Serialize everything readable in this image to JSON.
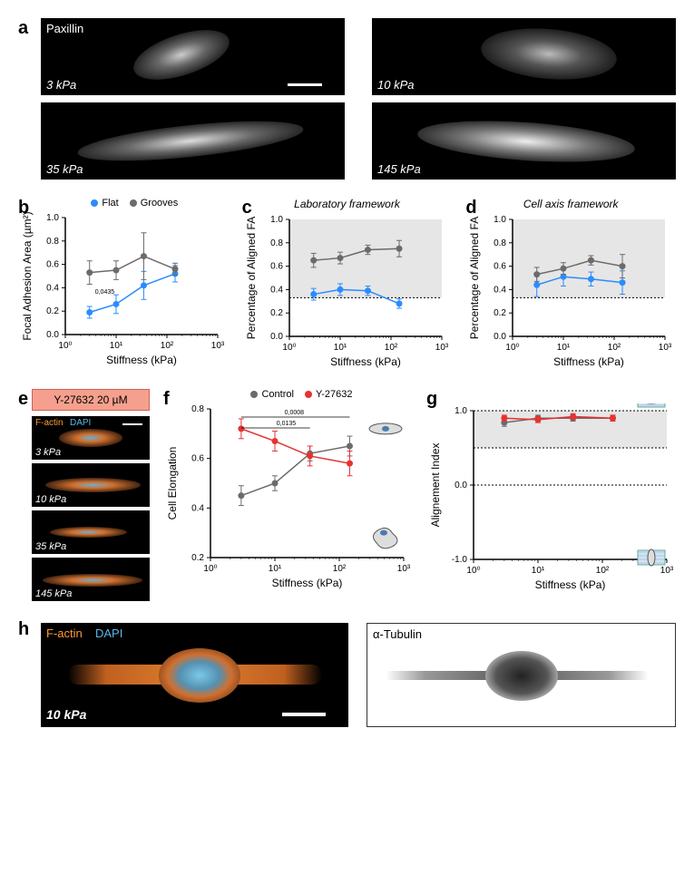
{
  "panel_a": {
    "label": "a",
    "paxillin_text": "Paxillin",
    "stiffnesses": [
      "3 kPa",
      "10 kPa",
      "35 kPa",
      "145 kPa"
    ]
  },
  "panel_b": {
    "label": "b",
    "legend": [
      {
        "name": "Flat",
        "color": "#2b8cff"
      },
      {
        "name": "Grooves",
        "color": "#6b6b6b"
      }
    ],
    "ylabel": "Focal Adhesion Area (µm²)",
    "xlabel": "Stiffness (kPa)",
    "ylim": [
      0.0,
      1.0
    ],
    "ytick_step": 0.2,
    "xticks": [
      1,
      10,
      100,
      1000
    ],
    "xtick_labels": [
      "10⁰",
      "10¹",
      "10²",
      "10³"
    ],
    "annotation": "0,0435",
    "series": {
      "flat": {
        "x": [
          3,
          10,
          35,
          145
        ],
        "y": [
          0.19,
          0.26,
          0.42,
          0.52
        ],
        "err": [
          0.05,
          0.08,
          0.12,
          0.07
        ],
        "color": "#2b8cff"
      },
      "grooves": {
        "x": [
          3,
          10,
          35,
          145
        ],
        "y": [
          0.53,
          0.55,
          0.67,
          0.56
        ],
        "err": [
          0.1,
          0.08,
          0.2,
          0.05
        ],
        "color": "#6b6b6b"
      }
    }
  },
  "panel_c": {
    "label": "c",
    "title": "Laboratory framework",
    "ylabel": "Percentage of Aligned FA",
    "xlabel": "Stiffness (kPa)",
    "ylim": [
      0.0,
      1.0
    ],
    "ytick_step": 0.2,
    "xticks": [
      1,
      10,
      100,
      1000
    ],
    "xtick_labels": [
      "10⁰",
      "10¹",
      "10²",
      "10³"
    ],
    "shaded_ymin": 0.33,
    "series": {
      "flat": {
        "x": [
          3,
          10,
          35,
          145
        ],
        "y": [
          0.36,
          0.4,
          0.39,
          0.28
        ],
        "err": [
          0.05,
          0.05,
          0.04,
          0.04
        ],
        "color": "#2b8cff"
      },
      "grooves": {
        "x": [
          3,
          10,
          35,
          145
        ],
        "y": [
          0.65,
          0.67,
          0.74,
          0.75
        ],
        "err": [
          0.06,
          0.05,
          0.04,
          0.07
        ],
        "color": "#6b6b6b"
      }
    }
  },
  "panel_d": {
    "label": "d",
    "title": "Cell axis framework",
    "ylabel": "Percentage of Aligned FA",
    "xlabel": "Stiffness (kPa)",
    "ylim": [
      0.0,
      1.0
    ],
    "ytick_step": 0.2,
    "xticks": [
      1,
      10,
      100,
      1000
    ],
    "xtick_labels": [
      "10⁰",
      "10¹",
      "10²",
      "10³"
    ],
    "shaded_ymin": 0.33,
    "series": {
      "flat": {
        "x": [
          3,
          10,
          35,
          145
        ],
        "y": [
          0.44,
          0.51,
          0.49,
          0.46
        ],
        "err": [
          0.1,
          0.08,
          0.06,
          0.1
        ],
        "color": "#2b8cff"
      },
      "grooves": {
        "x": [
          3,
          10,
          35,
          145
        ],
        "y": [
          0.53,
          0.58,
          0.65,
          0.6
        ],
        "err": [
          0.06,
          0.05,
          0.04,
          0.1
        ],
        "color": "#6b6b6b"
      }
    }
  },
  "panel_e": {
    "label": "e",
    "drug_box": "Y-27632 20 µM",
    "stain_f": "F-actin",
    "stain_d": "DAPI",
    "stiffnesses": [
      "3 kPa",
      "10 kPa",
      "35 kPa",
      "145 kPa"
    ]
  },
  "panel_f": {
    "label": "f",
    "legend": [
      {
        "name": "Control",
        "color": "#6b6b6b"
      },
      {
        "name": "Y-27632",
        "color": "#e63232"
      }
    ],
    "ylabel": "Cell Elongation",
    "xlabel": "Stiffness (kPa)",
    "ylim": [
      0.2,
      0.8
    ],
    "ytick_step": 0.2,
    "xticks": [
      1,
      10,
      100,
      1000
    ],
    "xtick_labels": [
      "10⁰",
      "10¹",
      "10²",
      "10³"
    ],
    "pvalues": [
      "0,0008",
      "0,0135"
    ],
    "series": {
      "control": {
        "x": [
          3,
          10,
          35,
          145
        ],
        "y": [
          0.45,
          0.5,
          0.62,
          0.65
        ],
        "err": [
          0.04,
          0.03,
          0.03,
          0.04
        ],
        "color": "#6b6b6b"
      },
      "drug": {
        "x": [
          3,
          10,
          35,
          145
        ],
        "y": [
          0.72,
          0.67,
          0.61,
          0.58
        ],
        "err": [
          0.04,
          0.04,
          0.04,
          0.05
        ],
        "color": "#e63232"
      }
    }
  },
  "panel_g": {
    "label": "g",
    "ylabel": "Alignement Index",
    "xlabel": "Stiffness (kPa)",
    "ylim": [
      -1.0,
      1.0
    ],
    "yticks": [
      -1.0,
      0.0,
      1.0
    ],
    "xticks": [
      1,
      10,
      100,
      1000
    ],
    "xtick_labels": [
      "10⁰",
      "10¹",
      "10²",
      "10³"
    ],
    "shaded_ymin": 0.5,
    "shaded_ymax": 1.0,
    "series": {
      "control": {
        "x": [
          3,
          10,
          35,
          145
        ],
        "y": [
          0.84,
          0.9,
          0.9,
          0.9
        ],
        "err": [
          0.05,
          0.04,
          0.04,
          0.04
        ],
        "color": "#6b6b6b"
      },
      "drug": {
        "x": [
          3,
          10,
          35,
          145
        ],
        "y": [
          0.9,
          0.88,
          0.92,
          0.9
        ],
        "err": [
          0.04,
          0.04,
          0.04,
          0.04
        ],
        "color": "#e63232"
      }
    }
  },
  "panel_h": {
    "label": "h",
    "left_labels": {
      "factin": "F-actin",
      "dapi": "DAPI",
      "stiffness": "10 kPa"
    },
    "right_label": "α-Tubulin"
  },
  "styling": {
    "bg": "#ffffff",
    "axis_color": "#000000",
    "grid_color": "#e0e0e0",
    "shade_color": "#e6e6e6",
    "label_fontsize": 12,
    "tick_fontsize": 10,
    "marker_radius": 3.5,
    "line_width": 1.5,
    "factin_color": "#ff9933",
    "dapi_color": "#5bb8e8"
  }
}
